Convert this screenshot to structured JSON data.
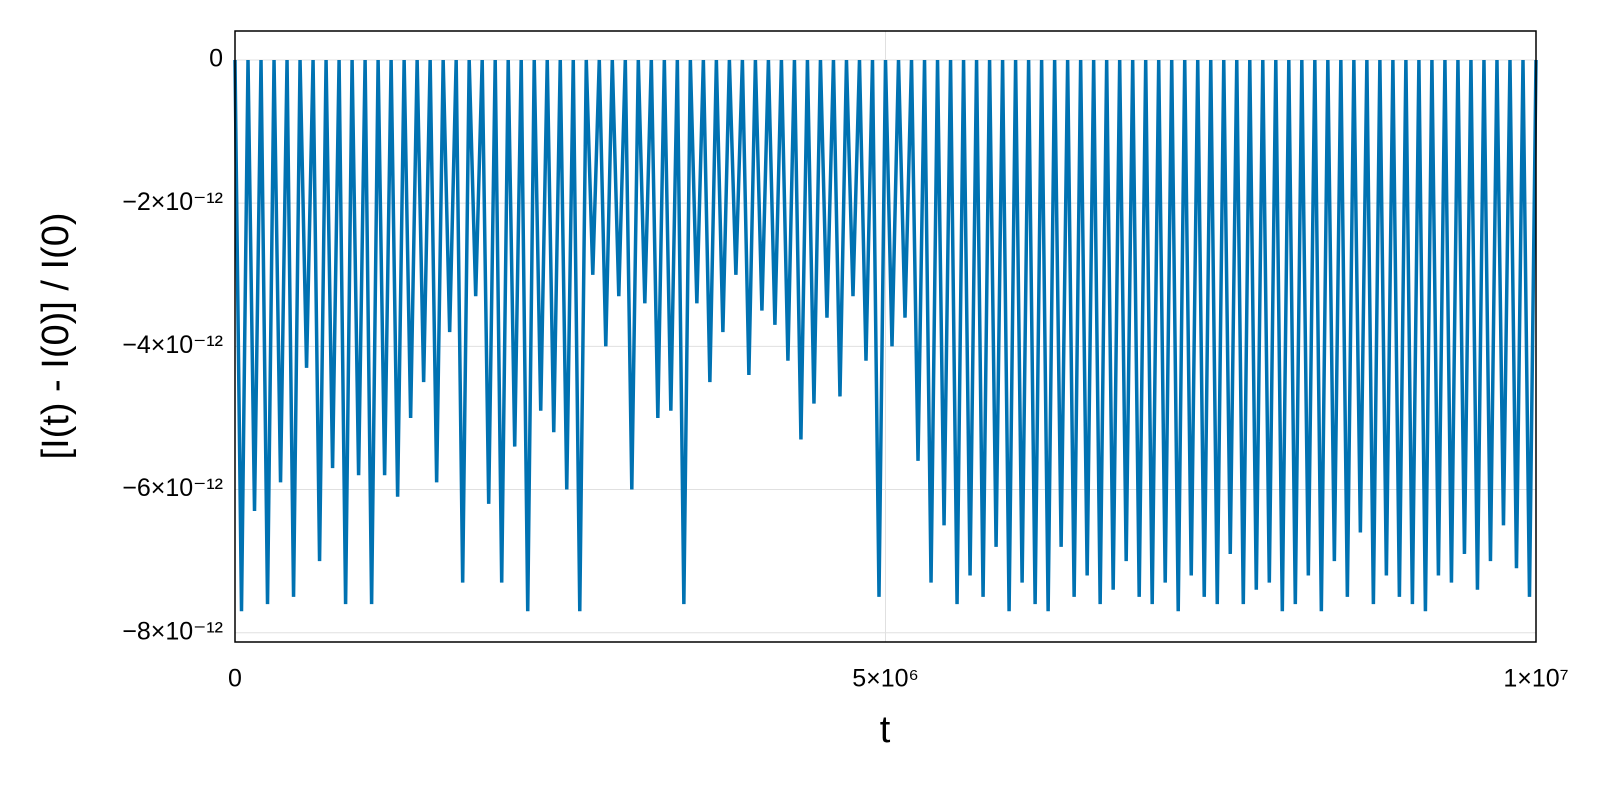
{
  "chart_data": {
    "type": "line",
    "x_label": "t",
    "y_label": "[I(t) - I(0)] / I(0)",
    "color": "#0072b2",
    "grid": true,
    "xlim": [
      0,
      10000000.0
    ],
    "ylim": [
      -8.13e-12,
      4.05e-13
    ],
    "xticks": [
      0,
      {
        "value": 5000000.0,
        "label": "5×10⁶"
      },
      {
        "value": 10000000.0,
        "label": "1×10⁷"
      }
    ],
    "yticks": [
      {
        "value": -8e-12,
        "label": "−8×10⁻¹²"
      },
      {
        "value": -6e-12,
        "label": "−6×10⁻¹²"
      },
      {
        "value": -4e-12,
        "label": "−4×10⁻¹²"
      },
      {
        "value": -2e-12,
        "label": "−2×10⁻¹²"
      },
      0
    ],
    "x": [
      0,
      50000.0,
      100000.0,
      150000.0,
      200000.0,
      250000.0,
      300000.0,
      350000.0,
      400000.0,
      450000.0,
      500000.0,
      550000.0,
      600000.0,
      650000.0,
      700000.0,
      750000.0,
      800000.0,
      850000.0,
      900000.0,
      950000.0,
      1000000.0,
      1050000.0,
      1100000.0,
      1150000.0,
      1200000.0,
      1250000.0,
      1300000.0,
      1350000.0,
      1400000.0,
      1450000.0,
      1500000.0,
      1550000.0,
      1600000.0,
      1650000.0,
      1700000.0,
      1750000.0,
      1800000.0,
      1850000.0,
      1900000.0,
      1950000.0,
      2000000.0,
      2050000.0,
      2100000.0,
      2150000.0,
      2200000.0,
      2250000.0,
      2300000.0,
      2350000.0,
      2400000.0,
      2450000.0,
      2500000.0,
      2550000.0,
      2600000.0,
      2650000.0,
      2700000.0,
      2750000.0,
      2800000.0,
      2850000.0,
      2900000.0,
      2950000.0,
      3000000.0,
      3050000.0,
      3100000.0,
      3150000.0,
      3200000.0,
      3250000.0,
      3300000.0,
      3350000.0,
      3400000.0,
      3450000.0,
      3500000.0,
      3550000.0,
      3600000.0,
      3650000.0,
      3700000.0,
      3750000.0,
      3800000.0,
      3850000.0,
      3900000.0,
      3950000.0,
      4000000.0,
      4050000.0,
      4100000.0,
      4150000.0,
      4200000.0,
      4250000.0,
      4300000.0,
      4350000.0,
      4400000.0,
      4450000.0,
      4500000.0,
      4550000.0,
      4600000.0,
      4650000.0,
      4700000.0,
      4750000.0,
      4800000.0,
      4850000.0,
      4900000.0,
      4950000.0,
      5000000.0,
      5050000.0,
      5100000.0,
      5150000.0,
      5200000.0,
      5250000.0,
      5300000.0,
      5350000.0,
      5400000.0,
      5450000.0,
      5500000.0,
      5550000.0,
      5600000.0,
      5650000.0,
      5700000.0,
      5750000.0,
      5800000.0,
      5850000.0,
      5900000.0,
      5950000.0,
      6000000.0,
      6050000.0,
      6100000.0,
      6150000.0,
      6200000.0,
      6250000.0,
      6300000.0,
      6350000.0,
      6400000.0,
      6450000.0,
      6500000.0,
      6550000.0,
      6600000.0,
      6650000.0,
      6700000.0,
      6750000.0,
      6800000.0,
      6850000.0,
      6900000.0,
      6950000.0,
      7000000.0,
      7050000.0,
      7100000.0,
      7150000.0,
      7200000.0,
      7250000.0,
      7300000.0,
      7350000.0,
      7400000.0,
      7450000.0,
      7500000.0,
      7550000.0,
      7600000.0,
      7650000.0,
      7700000.0,
      7750000.0,
      7800000.0,
      7850000.0,
      7900000.0,
      7950000.0,
      8000000.0,
      8050000.0,
      8100000.0,
      8150000.0,
      8200000.0,
      8250000.0,
      8300000.0,
      8350000.0,
      8400000.0,
      8450000.0,
      8500000.0,
      8550000.0,
      8600000.0,
      8650000.0,
      8700000.0,
      8750000.0,
      8800000.0,
      8850000.0,
      8900000.0,
      8950000.0,
      9000000.0,
      9050000.0,
      9100000.0,
      9150000.0,
      9200000.0,
      9250000.0,
      9300000.0,
      9350000.0,
      9400000.0,
      9450000.0,
      9500000.0,
      9550000.0,
      9600000.0,
      9650000.0,
      9700000.0,
      9750000.0,
      9800000.0,
      9850000.0,
      9900000.0,
      9950000.0,
      10000000.0
    ],
    "values": [
      0,
      -7.7e-12,
      0,
      -6.3e-12,
      0,
      -7.6e-12,
      0,
      -5.9e-12,
      0,
      -7.5e-12,
      0,
      -4.3e-12,
      0,
      -7e-12,
      0,
      -5.7e-12,
      0,
      -7.6e-12,
      0,
      -5.8e-12,
      0,
      -7.6e-12,
      0,
      -5.8e-12,
      0,
      -6.1e-12,
      0,
      -5e-12,
      0,
      -4.5e-12,
      0,
      -5.9e-12,
      0,
      -3.8e-12,
      0,
      -7.3e-12,
      0,
      -3.3e-12,
      0,
      -6.2e-12,
      0,
      -7.3e-12,
      0,
      -5.4e-12,
      0,
      -7.7e-12,
      0,
      -4.9e-12,
      0,
      -5.2e-12,
      0,
      -6e-12,
      0,
      -7.7e-12,
      0,
      -3e-12,
      0,
      -4e-12,
      0,
      -3.3e-12,
      0,
      -6e-12,
      0,
      -3.4e-12,
      0,
      -5e-12,
      0,
      -4.9e-12,
      0,
      -7.6e-12,
      0,
      -3.4e-12,
      0,
      -4.5e-12,
      0,
      -3.8e-12,
      0,
      -3e-12,
      0,
      -4.4e-12,
      0,
      -3.5e-12,
      0,
      -3.7e-12,
      0,
      -4.2e-12,
      0,
      -5.3e-12,
      0,
      -4.8e-12,
      0,
      -3.6e-12,
      0,
      -4.7e-12,
      0,
      -3.3e-12,
      0,
      -4.2e-12,
      0,
      -7.5e-12,
      0,
      -4e-12,
      0,
      -3.6e-12,
      0,
      -5.6e-12,
      0,
      -7.3e-12,
      0,
      -6.5e-12,
      0,
      -7.6e-12,
      0,
      -7.2e-12,
      0,
      -7.5e-12,
      0,
      -6.8e-12,
      0,
      -7.7e-12,
      0,
      -7.3e-12,
      0,
      -7.6e-12,
      0,
      -7.7e-12,
      0,
      -6.8e-12,
      0,
      -7.5e-12,
      0,
      -7.2e-12,
      0,
      -7.6e-12,
      0,
      -7.4e-12,
      0,
      -7e-12,
      0,
      -7.5e-12,
      0,
      -7.6e-12,
      0,
      -7.3e-12,
      0,
      -7.7e-12,
      0,
      -7.2e-12,
      0,
      -7.5e-12,
      0,
      -7.6e-12,
      0,
      -6.9e-12,
      0,
      -7.6e-12,
      0,
      -7.4e-12,
      0,
      -7.3e-12,
      0,
      -7.7e-12,
      0,
      -7.6e-12,
      0,
      -7.2e-12,
      0,
      -7.7e-12,
      0,
      -7e-12,
      0,
      -7.5e-12,
      0,
      -6.6e-12,
      0,
      -7.6e-12,
      0,
      -7.2e-12,
      0,
      -7.5e-12,
      0,
      -7.6e-12,
      0,
      -7.7e-12,
      0,
      -7.2e-12,
      0,
      -7.3e-12,
      0,
      -6.9e-12,
      0,
      -7.4e-12,
      0,
      -7e-12,
      0,
      -6.5e-12,
      0,
      -7.1e-12,
      0,
      -7.5e-12,
      0
    ]
  }
}
